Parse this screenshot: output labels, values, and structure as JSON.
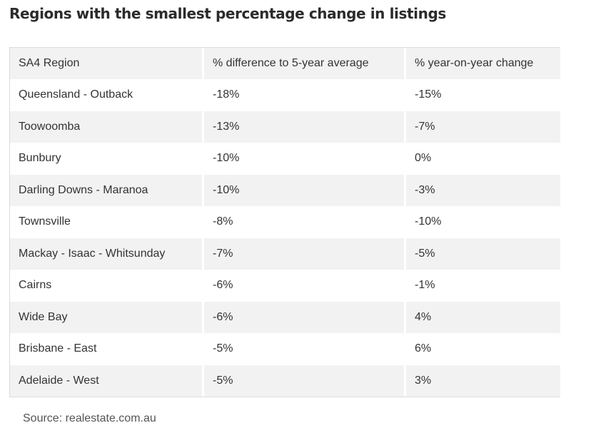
{
  "title": "Regions with the smallest percentage change in listings",
  "table": {
    "headers": [
      "SA4 Region",
      "% difference to 5-year average",
      "% year-on-year change"
    ],
    "rows": [
      [
        "Queensland - Outback",
        "-18%",
        "-15%"
      ],
      [
        "Toowoomba",
        "-13%",
        "-7%"
      ],
      [
        "Bunbury",
        "-10%",
        "0%"
      ],
      [
        "Darling Downs - Maranoa",
        "-10%",
        "-3%"
      ],
      [
        "Townsville",
        "-8%",
        "-10%"
      ],
      [
        "Mackay - Isaac - Whitsunday",
        "-7%",
        "-5%"
      ],
      [
        "Cairns",
        "-6%",
        "-1%"
      ],
      [
        "Wide Bay",
        "-6%",
        "4%"
      ],
      [
        "Brisbane - East",
        "-5%",
        "6%"
      ],
      [
        "Adelaide - West",
        "-5%",
        "3%"
      ]
    ]
  },
  "source": "Source: realestate.com.au",
  "colors": {
    "text": "#2b2b2b",
    "stripe": "#f2f2f2",
    "border": "#dcdcdc",
    "source_text": "#555555"
  }
}
